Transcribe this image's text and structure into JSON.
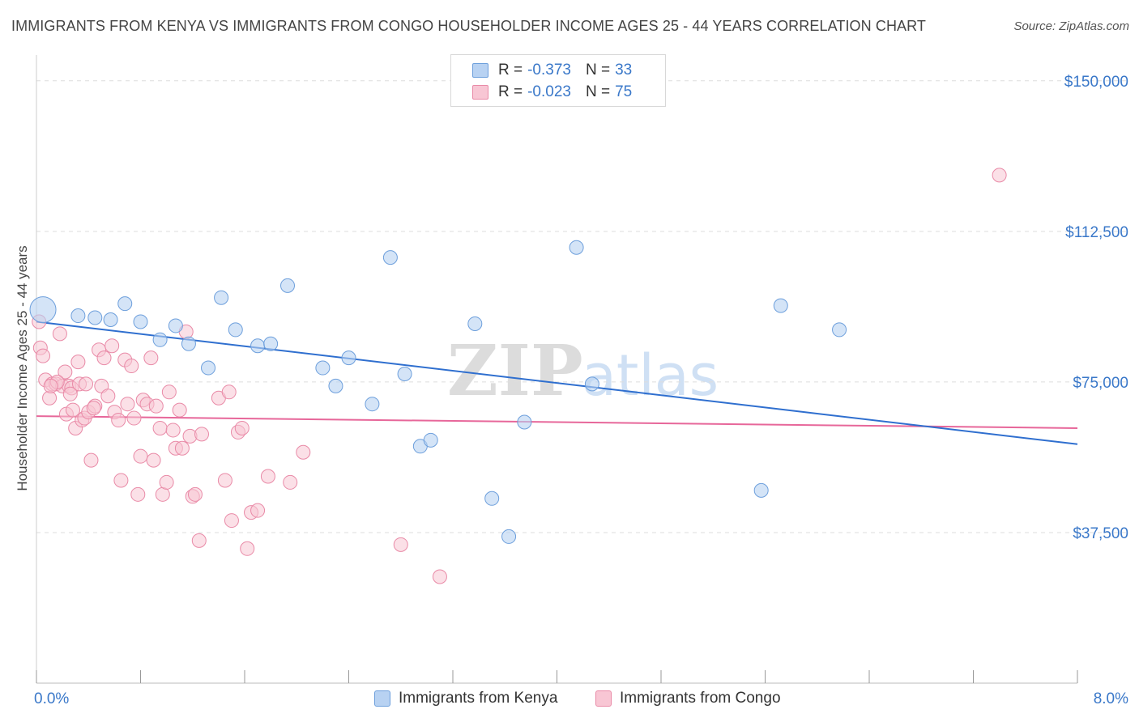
{
  "header": {
    "title": "IMMIGRANTS FROM KENYA VS IMMIGRANTS FROM CONGO HOUSEHOLDER INCOME AGES 25 - 44 YEARS CORRELATION CHART",
    "source": "Source: ZipAtlas.com"
  },
  "watermark": {
    "part1": "ZIP",
    "part2": "atlas"
  },
  "colors": {
    "kenya_fill": "#b8d2f2",
    "kenya_stroke": "#6d9fdc",
    "kenya_line": "#2f6fcf",
    "congo_fill": "#f8c6d4",
    "congo_stroke": "#e98aa7",
    "congo_line": "#e7679a",
    "axis_text": "#3a78c9",
    "grid": "#dddddd"
  },
  "legend": {
    "r_label": "R =",
    "n_label": "N =",
    "kenya": {
      "r": "-0.373",
      "n": "33"
    },
    "congo": {
      "r": "-0.023",
      "n": "75"
    }
  },
  "chart_data": {
    "type": "scatter",
    "title": "IMMIGRANTS FROM KENYA VS IMMIGRANTS FROM CONGO HOUSEHOLDER INCOME AGES 25 - 44 YEARS CORRELATION CHART",
    "xlabel": "",
    "ylabel": "Householder Income Ages 25 - 44 years",
    "xlim": [
      0,
      8
    ],
    "ylim": [
      0,
      155000
    ],
    "x_tick_labels": [
      "0.0%",
      "8.0%"
    ],
    "y_ticks": [
      37500,
      75000,
      112500,
      150000
    ],
    "y_tick_labels": [
      "$37,500",
      "$75,000",
      "$112,500",
      "$150,000"
    ],
    "series": [
      {
        "name": "Immigrants from Kenya",
        "points": [
          [
            0.05,
            93000
          ],
          [
            0.32,
            91500
          ],
          [
            0.45,
            91000
          ],
          [
            0.57,
            90500
          ],
          [
            0.68,
            94500
          ],
          [
            0.8,
            90000
          ],
          [
            0.95,
            85500
          ],
          [
            1.07,
            89000
          ],
          [
            1.17,
            84500
          ],
          [
            1.32,
            78500
          ],
          [
            1.42,
            96000
          ],
          [
            1.53,
            88000
          ],
          [
            1.7,
            84000
          ],
          [
            1.8,
            84500
          ],
          [
            1.93,
            99000
          ],
          [
            2.2,
            78500
          ],
          [
            2.3,
            74000
          ],
          [
            2.4,
            81000
          ],
          [
            2.58,
            69500
          ],
          [
            2.72,
            106000
          ],
          [
            2.83,
            77000
          ],
          [
            2.95,
            59000
          ],
          [
            3.03,
            60500
          ],
          [
            3.37,
            89500
          ],
          [
            3.5,
            46000
          ],
          [
            3.63,
            36500
          ],
          [
            3.75,
            65000
          ],
          [
            4.15,
            108500
          ],
          [
            4.27,
            74500
          ],
          [
            5.57,
            48000
          ],
          [
            5.72,
            94000
          ],
          [
            6.17,
            88000
          ]
        ],
        "sizes": [
          2,
          1,
          1,
          1,
          1,
          1,
          1,
          1,
          1,
          1,
          1,
          1,
          1,
          1,
          1,
          1,
          1,
          1,
          1,
          1,
          1,
          1,
          1,
          1,
          1,
          1,
          1,
          1,
          1,
          1,
          1,
          1
        ],
        "trend": {
          "x": [
            0.0,
            8.0
          ],
          "y": [
            90000,
            59500
          ]
        }
      },
      {
        "name": "Immigrants from Congo",
        "points": [
          [
            0.02,
            90000
          ],
          [
            0.03,
            83500
          ],
          [
            0.05,
            81500
          ],
          [
            0.07,
            75500
          ],
          [
            0.1,
            71000
          ],
          [
            0.12,
            74500
          ],
          [
            0.15,
            74500
          ],
          [
            0.18,
            87000
          ],
          [
            0.2,
            74000
          ],
          [
            0.22,
            77500
          ],
          [
            0.23,
            67000
          ],
          [
            0.25,
            74000
          ],
          [
            0.27,
            73500
          ],
          [
            0.3,
            63500
          ],
          [
            0.28,
            68000
          ],
          [
            0.32,
            80000
          ],
          [
            0.33,
            74500
          ],
          [
            0.35,
            65500
          ],
          [
            0.37,
            66000
          ],
          [
            0.4,
            67500
          ],
          [
            0.42,
            55500
          ],
          [
            0.45,
            69000
          ],
          [
            0.48,
            83000
          ],
          [
            0.5,
            74000
          ],
          [
            0.52,
            81000
          ],
          [
            0.55,
            71500
          ],
          [
            0.58,
            84000
          ],
          [
            0.6,
            67500
          ],
          [
            0.63,
            65500
          ],
          [
            0.65,
            50500
          ],
          [
            0.68,
            80500
          ],
          [
            0.7,
            69500
          ],
          [
            0.73,
            79000
          ],
          [
            0.75,
            66000
          ],
          [
            0.78,
            47000
          ],
          [
            0.8,
            56500
          ],
          [
            0.82,
            70500
          ],
          [
            0.85,
            69500
          ],
          [
            0.88,
            81000
          ],
          [
            0.9,
            55500
          ],
          [
            0.92,
            69000
          ],
          [
            0.95,
            63500
          ],
          [
            0.97,
            47000
          ],
          [
            1.0,
            50000
          ],
          [
            1.02,
            72500
          ],
          [
            1.05,
            63000
          ],
          [
            1.07,
            58500
          ],
          [
            1.1,
            68000
          ],
          [
            1.12,
            58500
          ],
          [
            1.15,
            87500
          ],
          [
            1.18,
            61500
          ],
          [
            1.2,
            46500
          ],
          [
            1.22,
            47000
          ],
          [
            1.25,
            35500
          ],
          [
            1.27,
            62000
          ],
          [
            1.4,
            71000
          ],
          [
            1.45,
            50500
          ],
          [
            1.48,
            72500
          ],
          [
            1.5,
            40500
          ],
          [
            1.55,
            62500
          ],
          [
            1.58,
            63500
          ],
          [
            1.62,
            33500
          ],
          [
            1.65,
            42500
          ],
          [
            1.7,
            43000
          ],
          [
            1.78,
            51500
          ],
          [
            1.95,
            50000
          ],
          [
            2.05,
            57500
          ],
          [
            2.8,
            34500
          ],
          [
            3.1,
            26500
          ],
          [
            7.4,
            126500
          ],
          [
            0.38,
            74500
          ],
          [
            0.26,
            72000
          ],
          [
            0.44,
            68500
          ],
          [
            0.16,
            75000
          ],
          [
            0.11,
            74000
          ]
        ],
        "trend": {
          "x": [
            0.0,
            8.0
          ],
          "y": [
            66500,
            63500
          ]
        }
      }
    ],
    "legend_position": "top-center"
  },
  "bottom_legend": {
    "kenya_label": "Immigrants from Kenya",
    "congo_label": "Immigrants from Congo"
  }
}
